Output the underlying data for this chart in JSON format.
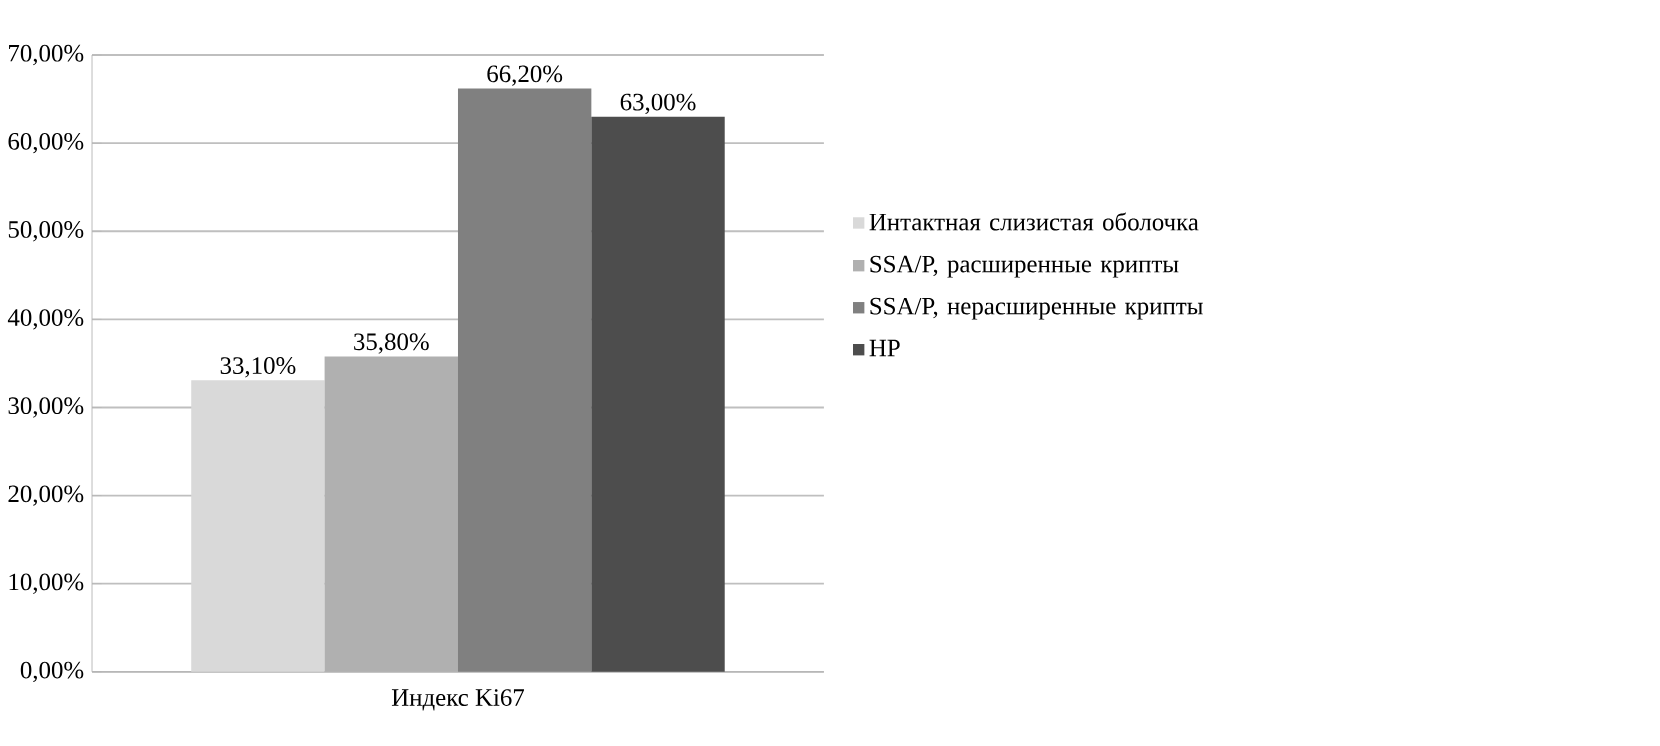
{
  "chart_data": {
    "type": "bar",
    "categories": [
      "Индекс Ki67"
    ],
    "series": [
      {
        "name": "Интактная слизистая оболочка",
        "color": "#d9d9d9",
        "values": [
          33.1
        ],
        "value_labels": [
          "33,10%"
        ]
      },
      {
        "name": "SSA/P, расширенные крипты",
        "color": "#b0b0b0",
        "values": [
          35.8
        ],
        "value_labels": [
          "35,80%"
        ]
      },
      {
        "name": "SSA/P, нерасширенные крипты",
        "color": "#808080",
        "values": [
          66.2
        ],
        "value_labels": [
          "66,20%"
        ]
      },
      {
        "name": "HP",
        "color": "#4d4d4d",
        "values": [
          63.0
        ],
        "value_labels": [
          "63,00%"
        ]
      }
    ],
    "ylim": [
      0,
      70
    ],
    "yticks": [
      {
        "value": 0,
        "label": "0,00%"
      },
      {
        "value": 10,
        "label": "10,00%"
      },
      {
        "value": 20,
        "label": "20,00%"
      },
      {
        "value": 30,
        "label": "30,00%"
      },
      {
        "value": 40,
        "label": "40,00%"
      },
      {
        "value": 50,
        "label": "50,00%"
      },
      {
        "value": 60,
        "label": "60,00%"
      },
      {
        "value": 70,
        "label": "70,00%"
      }
    ],
    "grid": "y",
    "legend": "right"
  }
}
